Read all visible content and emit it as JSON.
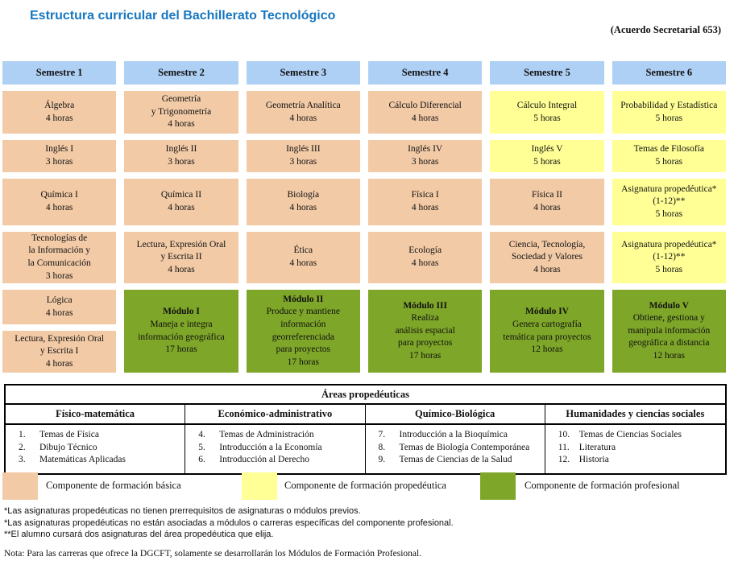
{
  "page": {
    "title": "Estructura curricular del Bachillerato Tecnológico",
    "subtitle": "(Acuerdo Secretarial 653)"
  },
  "columns": [
    {
      "header": "Semestre 1",
      "subjects": [
        "Álgebra\n4 horas",
        "Inglés I\n3 horas",
        "Química I\n4 horas",
        "Tecnologías de\nla Información y\nla Comunicación\n3 horas",
        "Lógica\n4 horas",
        "Lectura, Expresión Oral\ny Escrita I\n4 horas"
      ]
    },
    {
      "header": "Semestre 2",
      "subjects": [
        "Geometría\ny Trigonometría\n4 horas",
        "Inglés II\n3 horas",
        "Química II\n4 horas",
        "Lectura, Expresión Oral\ny Escrita II\n4 horas"
      ],
      "module": {
        "title": "Módulo I",
        "body": "Maneja e integra\ninformación geográfica\n17 horas"
      }
    },
    {
      "header": "Semestre 3",
      "subjects": [
        "Geometría Analítica\n4 horas",
        "Inglés III\n3 horas",
        "Biología\n4 horas",
        "Ética\n4 horas"
      ],
      "module": {
        "title": "Módulo II",
        "body": "Produce y mantiene\ninformación\ngeorreferenciada\npara proyectos\n17 horas"
      }
    },
    {
      "header": "Semestre 4",
      "subjects": [
        "Cálculo Diferencial\n4 horas",
        "Inglés IV\n3 horas",
        "Física I\n4 horas",
        "Ecología\n4 horas"
      ],
      "module": {
        "title": "Módulo III",
        "body": "Realiza\nanálisis espacial\npara proyectos\n17 horas"
      }
    },
    {
      "header": "Semestre 5",
      "subjects": [
        "Cálculo Integral\n5 horas",
        "Inglés V\n5 horas",
        "Física II\n4 horas",
        "Ciencia, Tecnología,\nSociedad y Valores\n4 horas"
      ],
      "module": {
        "title": "Módulo IV",
        "body": "Genera cartografía\ntemática para proyectos\n12 horas"
      }
    },
    {
      "header": "Semestre 6",
      "subjects": [
        "Probabilidad y Estadística\n5 horas",
        "Temas de Filosofía\n5 horas",
        "Asignatura propedéutica*\n(1-12)**\n5 horas",
        "Asignatura propedéutica*\n(1-12)**\n5 horas"
      ],
      "module": {
        "title": "Módulo V",
        "body": "Obtiene, gestiona y\nmanipula información\ngeográfica a distancia\n12 horas"
      }
    }
  ],
  "areas": {
    "title": "Áreas propedéuticas",
    "columns": [
      {
        "header": "Físico-matemática",
        "items": [
          {
            "num": "1.",
            "label": "Temas de Física"
          },
          {
            "num": "2.",
            "label": "Dibujo Técnico"
          },
          {
            "num": "3.",
            "label": "Matemáticas Aplicadas"
          }
        ]
      },
      {
        "header": "Económico-administrativo",
        "items": [
          {
            "num": "4.",
            "label": "Temas de Administración"
          },
          {
            "num": "5.",
            "label": "Introducción a la Economía"
          },
          {
            "num": "6.",
            "label": "Introducción al Derecho"
          }
        ]
      },
      {
        "header": "Químico-Biológica",
        "items": [
          {
            "num": "7.",
            "label": "Introducción a la Bioquímica"
          },
          {
            "num": "8.",
            "label": "Temas de Biología Contemporánea"
          },
          {
            "num": "9.",
            "label": "Temas de Ciencias de la Salud"
          }
        ]
      },
      {
        "header": "Humanidades y ciencias sociales",
        "items": [
          {
            "num": "10.",
            "label": "Temas de Ciencias Sociales"
          },
          {
            "num": "11.",
            "label": "Literatura"
          },
          {
            "num": "12.",
            "label": "Historia"
          }
        ]
      }
    ]
  },
  "legend": [
    {
      "label": "Componente de formación básica",
      "color": "#F2CAA6"
    },
    {
      "label": "Componente de formación propedéutica",
      "color": "#FFFF96"
    },
    {
      "label": "Componente de formación profesional",
      "color": "#7EA628"
    }
  ],
  "colors": {
    "semester_header": "#AFD0F5",
    "title_blue": "#1777C0"
  },
  "footnotes": [
    "*Las asignaturas propedéuticas no tienen prerrequisitos de asignaturas o módulos previos.",
    "*Las asignaturas propedéuticas no están asociadas a módulos o carreras específicas del componente profesional.",
    "**El alumno cursará dos asignaturas del área propedéutica que elija."
  ],
  "note": "Nota: Para las carreras que ofrece la DGCFT, solamente se desarrollarán los Módulos de Formación Profesional."
}
